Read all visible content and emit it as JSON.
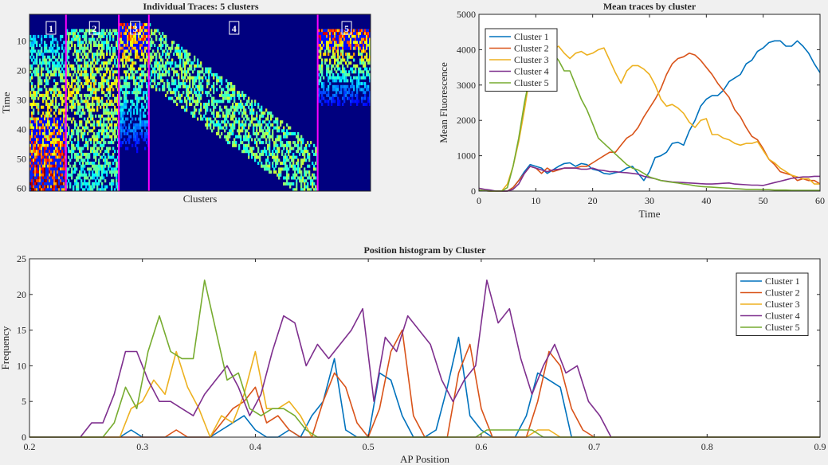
{
  "chart_data": [
    {
      "type": "heatmap",
      "title": "Individual Traces: 5 clusters",
      "xlabel": "Clusters",
      "ylabel": "Time",
      "ylim": [
        1,
        61
      ],
      "yticks": [
        10,
        20,
        30,
        40,
        50,
        60
      ],
      "cluster_labels": [
        "1",
        "2",
        "3",
        "4",
        "5"
      ],
      "colormap": "parula/jet",
      "separator_color": "#ff00ff"
    },
    {
      "type": "line",
      "title": "Mean traces by cluster",
      "xlabel": "Time",
      "ylabel": "Mean Fluorescence",
      "xlim": [
        0,
        60
      ],
      "ylim": [
        0,
        5000
      ],
      "xticks": [
        0,
        10,
        20,
        30,
        40,
        50,
        60
      ],
      "yticks": [
        0,
        1000,
        2000,
        3000,
        4000,
        5000
      ],
      "legend_position": "top-left",
      "x": [
        0,
        1,
        2,
        3,
        4,
        5,
        6,
        7,
        8,
        9,
        10,
        11,
        12,
        13,
        14,
        15,
        16,
        17,
        18,
        19,
        20,
        21,
        22,
        23,
        24,
        25,
        26,
        27,
        28,
        29,
        30,
        31,
        32,
        33,
        34,
        35,
        36,
        37,
        38,
        39,
        40,
        41,
        42,
        43,
        44,
        45,
        46,
        47,
        48,
        49,
        50,
        51,
        52,
        53,
        54,
        55,
        56,
        57,
        58,
        59,
        60
      ],
      "series": [
        {
          "name": "Cluster 1",
          "color": "#0072bd",
          "values": [
            30,
            10,
            0,
            0,
            0,
            0,
            100,
            300,
            550,
            750,
            700,
            650,
            500,
            600,
            700,
            780,
            800,
            700,
            780,
            750,
            620,
            580,
            500,
            480,
            520,
            550,
            650,
            700,
            500,
            300,
            550,
            950,
            1000,
            1100,
            1350,
            1380,
            1300,
            1700,
            2000,
            2400,
            2600,
            2700,
            2700,
            2850,
            3100,
            3200,
            3300,
            3600,
            3700,
            3950,
            4050,
            4200,
            4250,
            4250,
            4100,
            4100,
            4250,
            4100,
            3900,
            3600,
            3350
          ]
        },
        {
          "name": "Cluster 2",
          "color": "#d95319",
          "values": [
            30,
            10,
            0,
            0,
            0,
            0,
            100,
            300,
            500,
            700,
            650,
            500,
            650,
            550,
            600,
            650,
            650,
            650,
            700,
            700,
            800,
            900,
            1000,
            1100,
            1100,
            1300,
            1500,
            1600,
            1800,
            2100,
            2350,
            2600,
            2900,
            3300,
            3600,
            3750,
            3800,
            3900,
            3850,
            3700,
            3500,
            3300,
            3050,
            2850,
            2650,
            2300,
            2100,
            1800,
            1550,
            1450,
            1200,
            900,
            750,
            550,
            500,
            450,
            300,
            350,
            300,
            300,
            200
          ]
        },
        {
          "name": "Cluster 3",
          "color": "#edb120",
          "values": [
            30,
            10,
            0,
            0,
            0,
            200,
            700,
            1400,
            2300,
            3300,
            4000,
            4100,
            4050,
            4000,
            4100,
            3900,
            3750,
            3900,
            3950,
            3850,
            3900,
            4000,
            4050,
            3700,
            3350,
            3050,
            3400,
            3550,
            3550,
            3450,
            3300,
            3000,
            2600,
            2400,
            2450,
            2350,
            2200,
            1950,
            1800,
            2000,
            2050,
            1600,
            1600,
            1500,
            1450,
            1350,
            1300,
            1350,
            1350,
            1400,
            1150,
            900,
            800,
            650,
            550,
            450,
            400,
            350,
            350,
            200,
            200
          ]
        },
        {
          "name": "Cluster 4",
          "color": "#7e2f8e",
          "values": [
            80,
            50,
            30,
            0,
            0,
            0,
            50,
            200,
            500,
            700,
            650,
            600,
            550,
            600,
            620,
            650,
            650,
            650,
            620,
            620,
            650,
            600,
            580,
            550,
            550,
            530,
            520,
            500,
            480,
            420,
            380,
            350,
            300,
            280,
            260,
            250,
            240,
            230,
            220,
            210,
            200,
            200,
            210,
            220,
            230,
            200,
            190,
            180,
            170,
            170,
            160,
            200,
            240,
            280,
            320,
            360,
            380,
            400,
            400,
            420,
            420
          ]
        },
        {
          "name": "Cluster 5",
          "color": "#77ac30",
          "values": [
            30,
            10,
            0,
            0,
            0,
            100,
            700,
            1500,
            2500,
            3300,
            3800,
            4050,
            4000,
            3900,
            3700,
            3400,
            3400,
            3000,
            2600,
            2300,
            1900,
            1500,
            1350,
            1200,
            1050,
            900,
            750,
            650,
            600,
            500,
            400,
            350,
            300,
            270,
            250,
            230,
            200,
            180,
            150,
            130,
            120,
            110,
            100,
            90,
            80,
            70,
            60,
            50,
            50,
            50,
            40,
            40,
            30,
            30,
            30,
            20,
            20,
            20,
            20,
            20,
            20
          ]
        }
      ]
    },
    {
      "type": "line",
      "title": "Position histogram by Cluster",
      "xlabel": "AP Position",
      "ylabel": "Frequency",
      "xlim": [
        0.2,
        0.9
      ],
      "ylim": [
        0,
        25
      ],
      "xticks": [
        0.2,
        0.3,
        0.4,
        0.5,
        0.6,
        0.7,
        0.8,
        0.9
      ],
      "yticks": [
        0,
        5,
        10,
        15,
        20,
        25
      ],
      "legend_position": "top-right",
      "series": [
        {
          "name": "Cluster 1",
          "color": "#0072bd",
          "x": [
            0.2,
            0.28,
            0.29,
            0.3,
            0.31,
            0.32,
            0.33,
            0.34,
            0.35,
            0.36,
            0.37,
            0.38,
            0.39,
            0.4,
            0.41,
            0.42,
            0.43,
            0.44,
            0.45,
            0.46,
            0.47,
            0.48,
            0.49,
            0.5,
            0.51,
            0.52,
            0.53,
            0.54,
            0.55,
            0.56,
            0.57,
            0.58,
            0.59,
            0.6,
            0.61,
            0.62,
            0.63,
            0.64,
            0.65,
            0.66,
            0.67,
            0.68,
            0.9
          ],
          "y": [
            0,
            0,
            1,
            0,
            0,
            0,
            0,
            0,
            0,
            0,
            1,
            2,
            3,
            1,
            0,
            0,
            1,
            0,
            3,
            5,
            11,
            1,
            0,
            0,
            9,
            8,
            3,
            0,
            0,
            1,
            7,
            14,
            3,
            1,
            0,
            0,
            0,
            3,
            9,
            8,
            7,
            0,
            0
          ]
        },
        {
          "name": "Cluster 2",
          "color": "#d95319",
          "x": [
            0.2,
            0.31,
            0.32,
            0.33,
            0.34,
            0.35,
            0.36,
            0.37,
            0.38,
            0.39,
            0.4,
            0.41,
            0.42,
            0.43,
            0.44,
            0.45,
            0.46,
            0.47,
            0.48,
            0.49,
            0.5,
            0.51,
            0.52,
            0.53,
            0.54,
            0.55,
            0.56,
            0.57,
            0.58,
            0.59,
            0.6,
            0.61,
            0.62,
            0.63,
            0.64,
            0.65,
            0.66,
            0.67,
            0.68,
            0.69,
            0.7,
            0.9
          ],
          "y": [
            0,
            0,
            0,
            1,
            0,
            0,
            0,
            2,
            4,
            5,
            7,
            2,
            3,
            1,
            0,
            0,
            5,
            9,
            7,
            2,
            0,
            4,
            12,
            15,
            3,
            0,
            0,
            0,
            9,
            13,
            4,
            0,
            0,
            0,
            0,
            5,
            12,
            10,
            4,
            1,
            0,
            0
          ]
        },
        {
          "name": "Cluster 3",
          "color": "#edb120",
          "x": [
            0.2,
            0.28,
            0.29,
            0.3,
            0.31,
            0.32,
            0.33,
            0.34,
            0.35,
            0.36,
            0.37,
            0.38,
            0.39,
            0.4,
            0.41,
            0.42,
            0.43,
            0.44,
            0.45,
            0.46,
            0.47,
            0.48,
            0.49,
            0.5,
            0.51,
            0.52,
            0.53,
            0.54,
            0.55,
            0.56,
            0.57,
            0.58,
            0.59,
            0.6,
            0.61,
            0.62,
            0.63,
            0.64,
            0.65,
            0.66,
            0.67,
            0.68,
            0.9
          ],
          "y": [
            0,
            0,
            4,
            5,
            8,
            6,
            12,
            7,
            4,
            0,
            3,
            2,
            6,
            12,
            4,
            4,
            5,
            3,
            0,
            0,
            0,
            0,
            0,
            0,
            0,
            0,
            0,
            0,
            0,
            0,
            0,
            0,
            0,
            0,
            0,
            0,
            0,
            0,
            1,
            1,
            0,
            0,
            0
          ]
        },
        {
          "name": "Cluster 4",
          "color": "#7e2f8e",
          "x": [
            0.2,
            0.245,
            0.255,
            0.265,
            0.275,
            0.285,
            0.295,
            0.305,
            0.315,
            0.325,
            0.335,
            0.345,
            0.355,
            0.365,
            0.375,
            0.385,
            0.395,
            0.405,
            0.415,
            0.425,
            0.435,
            0.445,
            0.455,
            0.465,
            0.475,
            0.485,
            0.495,
            0.505,
            0.515,
            0.525,
            0.535,
            0.545,
            0.555,
            0.565,
            0.575,
            0.585,
            0.595,
            0.605,
            0.615,
            0.625,
            0.635,
            0.645,
            0.655,
            0.665,
            0.675,
            0.685,
            0.695,
            0.705,
            0.715,
            0.9
          ],
          "y": [
            0,
            0,
            2,
            2,
            6,
            12,
            12,
            8,
            5,
            5,
            4,
            3,
            6,
            8,
            10,
            7,
            3,
            6,
            12,
            17,
            16,
            10,
            13,
            11,
            13,
            15,
            18,
            5,
            14,
            12,
            17,
            15,
            13,
            8,
            5,
            8,
            10,
            22,
            16,
            18,
            11,
            6,
            10,
            13,
            9,
            10,
            5,
            3,
            0,
            0
          ]
        },
        {
          "name": "Cluster 5",
          "color": "#77ac30",
          "x": [
            0.2,
            0.265,
            0.275,
            0.285,
            0.295,
            0.305,
            0.315,
            0.325,
            0.335,
            0.345,
            0.355,
            0.365,
            0.375,
            0.385,
            0.395,
            0.405,
            0.415,
            0.425,
            0.435,
            0.445,
            0.455,
            0.465,
            0.475,
            0.595,
            0.605,
            0.615,
            0.625,
            0.635,
            0.645,
            0.655,
            0.665,
            0.675,
            0.9
          ],
          "y": [
            0,
            0,
            2,
            7,
            4,
            12,
            17,
            12,
            11,
            11,
            22,
            15,
            8,
            9,
            4,
            3,
            4,
            4,
            3,
            1,
            0,
            0,
            0,
            0,
            1,
            1,
            1,
            1,
            1,
            0,
            0,
            0,
            0
          ]
        }
      ]
    }
  ]
}
